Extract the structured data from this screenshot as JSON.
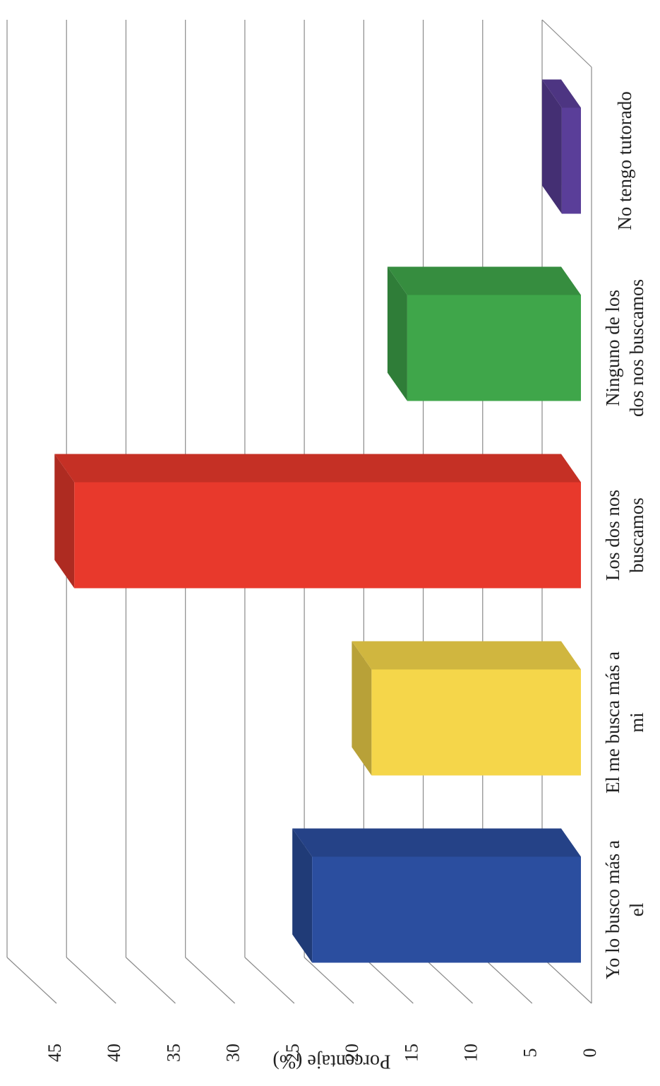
{
  "chart_data": {
    "type": "bar",
    "orientation": "rotated-90",
    "three_d": true,
    "title": "",
    "xlabel": "",
    "ylabel": "Porcentaje (%)",
    "ylim": [
      0,
      45
    ],
    "yticks": [
      "0",
      "5",
      "10",
      "15",
      "20",
      "25",
      "30",
      "35",
      "40",
      "45"
    ],
    "grid": true,
    "legend": "none",
    "categories": [
      [
        "Yo lo busco más a",
        "el"
      ],
      [
        "El me busca más a",
        "mi"
      ],
      [
        "Los dos nos",
        "buscamos"
      ],
      [
        "Ninguno de los",
        "dos nos buscamos"
      ],
      [
        "No tengo tutorado"
      ]
    ],
    "values": [
      23.5,
      18.5,
      43.5,
      15.5,
      2.5
    ],
    "colors": [
      "#2B4E9F",
      "#F5D64A",
      "#E8392C",
      "#3FA64A",
      "#5A3E99"
    ]
  }
}
